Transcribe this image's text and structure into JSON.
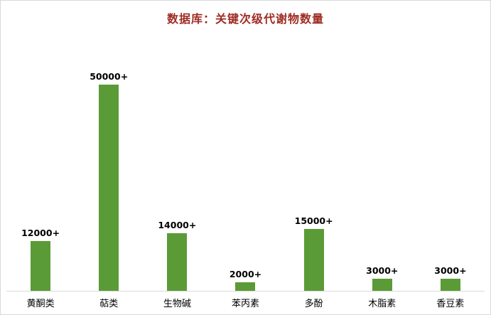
{
  "title": "数据库：关键次级代谢物数量",
  "colors": {
    "bar": "#5B9B37",
    "title": "#9E2B23",
    "axis_line": "#D9D9D9",
    "label": "#000000"
  },
  "chart_data": {
    "type": "bar",
    "title": "数据库：关键次级代谢物数量",
    "categories": [
      "黄酮类",
      "萜类",
      "生物碱",
      "苯丙素",
      "多酚",
      "木脂素",
      "香豆素"
    ],
    "values": [
      12000,
      50000,
      14000,
      2000,
      15000,
      3000,
      3000
    ],
    "value_labels": [
      "12000+",
      "50000+",
      "14000+",
      "2000+",
      "15000+",
      "3000+",
      "3000+"
    ],
    "xlabel": "",
    "ylabel": "",
    "ylim": [
      0,
      50000
    ],
    "grid": false,
    "legend": false,
    "legend_position": "none",
    "y_axis_visible": false
  }
}
